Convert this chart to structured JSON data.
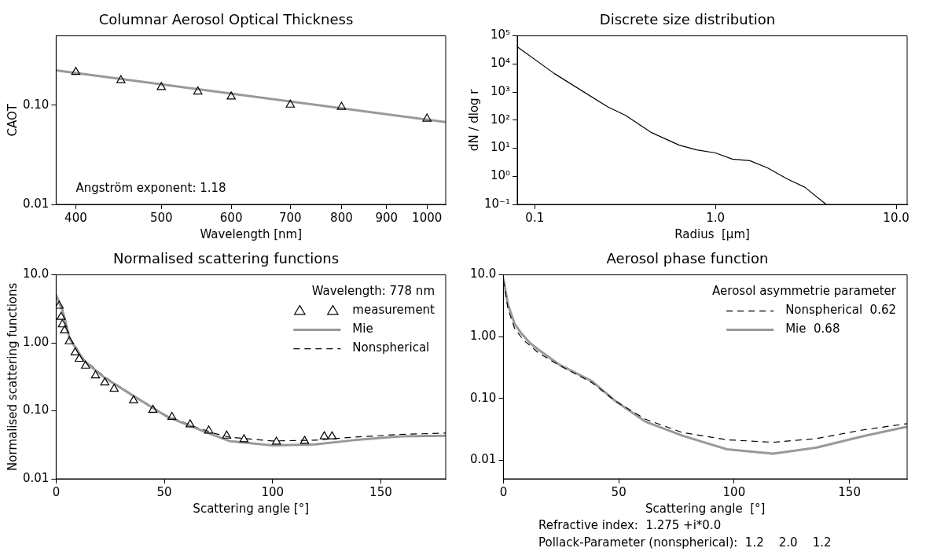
{
  "chart_data": [
    {
      "type": "line",
      "title": "Columnar Aerosol Optical Thickness",
      "xlabel": "Wavelength [nm]",
      "ylabel": "CAOT",
      "log": "xy",
      "xlim": [
        380,
        1050
      ],
      "xticks": [
        400,
        500,
        600,
        700,
        800,
        900,
        1000
      ],
      "ylim": [
        0.01,
        0.5
      ],
      "yticks": [
        {
          "value": 0.01,
          "label": "0.01"
        },
        {
          "value": 0.1,
          "label": "0.10"
        }
      ],
      "grid": false,
      "legend": false,
      "annotations": [
        "Angström exponent: 1.18"
      ],
      "series": [
        {
          "type": "scatter",
          "marker": "triangle",
          "color": "#000000",
          "x": [
            400,
            450,
            500,
            550,
            600,
            700,
            800,
            1000
          ],
          "values": [
            0.216,
            0.178,
            0.152,
            0.137,
            0.122,
            0.101,
            0.096,
            0.073
          ]
        },
        {
          "type": "line",
          "marker": "none",
          "line_style": "solid",
          "color": "#999999",
          "x": [
            380,
            1050
          ],
          "values": [
            0.224,
            0.0676
          ]
        }
      ]
    },
    {
      "type": "line",
      "title": "Discrete size distribution",
      "xlabel": "Radius  [μm]",
      "ylabel": "dN / dlog r",
      "log": "xy",
      "xlim": [
        0.08,
        11.5
      ],
      "xticks": [
        0.1,
        {
          "value": 1,
          "label": "1.0"
        },
        {
          "value": 10,
          "label": "10.0"
        }
      ],
      "ylim": [
        0.1,
        100000
      ],
      "yticks": [
        {
          "value": 0.1,
          "label": "10⁻¹"
        },
        {
          "value": 1,
          "label": "10⁰"
        },
        {
          "value": 10,
          "label": "10¹"
        },
        {
          "value": 100,
          "label": "10²"
        },
        {
          "value": 1000,
          "label": "10³"
        },
        {
          "value": 10000,
          "label": "10⁴"
        },
        {
          "value": 100000,
          "label": "10⁵"
        }
      ],
      "grid": false,
      "legend": false,
      "series": [
        {
          "type": "line",
          "marker": "none",
          "line_style": "solid",
          "color": "#000000",
          "x": [
            0.08,
            0.128,
            0.254,
            0.318,
            0.443,
            0.63,
            0.787,
            1.0,
            1.24,
            1.55,
            1.94,
            2.49,
            3.12,
            4.1
          ],
          "values": [
            41000,
            4600,
            295,
            148,
            36,
            12.9,
            8.7,
            6.8,
            4.1,
            3.6,
            2.0,
            0.81,
            0.41,
            0.1
          ]
        }
      ]
    },
    {
      "type": "line",
      "title": "Normalised scattering functions",
      "xlabel": "Scattering angle [°]",
      "ylabel": "Normalised scattering functions",
      "log": "y",
      "xlim": [
        0,
        180
      ],
      "xticks": [
        0,
        50,
        100,
        150
      ],
      "ylim": [
        0.01,
        10
      ],
      "yticks": [
        {
          "value": 0.01,
          "label": "0.01"
        },
        {
          "value": 0.1,
          "label": "0.10"
        },
        {
          "value": 1,
          "label": "1.00"
        },
        {
          "value": 10,
          "label": "10.0"
        }
      ],
      "grid": false,
      "legend": "top right",
      "legend_title": "Wavelength: 778 nm",
      "series": [
        {
          "name": "measurement",
          "type": "scatter",
          "marker": "triangle",
          "color": "#000000",
          "x": [
            1.4,
            2.3,
            2.9,
            3.9,
            6.1,
            8.8,
            10.7,
            13.6,
            18.2,
            22.5,
            26.8,
            35.8,
            44.7,
            53.5,
            61.9,
            70.5,
            78.8,
            86.8,
            101.8,
            114.8,
            123.9,
            127.5
          ],
          "values": [
            3.5,
            2.4,
            1.86,
            1.52,
            1.05,
            0.72,
            0.58,
            0.46,
            0.33,
            0.26,
            0.21,
            0.142,
            0.103,
            0.081,
            0.063,
            0.051,
            0.043,
            0.038,
            0.035,
            0.036,
            0.042,
            0.042
          ]
        },
        {
          "name": "Mie",
          "type": "line",
          "marker": "none",
          "line_style": "solid",
          "color": "#999999",
          "x": [
            0,
            3.2,
            6.3,
            12.8,
            22.2,
            36.6,
            51,
            65.5,
            80,
            100,
            119.6,
            137.6,
            159,
            180
          ],
          "values": [
            5.1,
            2.8,
            1.15,
            0.55,
            0.31,
            0.159,
            0.083,
            0.054,
            0.036,
            0.031,
            0.032,
            0.037,
            0.042,
            0.043
          ]
        },
        {
          "name": "Nonspherical",
          "type": "line",
          "marker": "none",
          "line_style": "dashed",
          "color": "#000000",
          "x": [
            0,
            3.2,
            6.3,
            12.8,
            22.2,
            36.6,
            51,
            65.5,
            72.7,
            80,
            100,
            119.6,
            137.6,
            159,
            180
          ],
          "values": [
            4.9,
            3.0,
            1.2,
            0.57,
            0.32,
            0.162,
            0.085,
            0.056,
            0.047,
            0.041,
            0.036,
            0.037,
            0.041,
            0.045,
            0.047
          ]
        }
      ]
    },
    {
      "type": "line",
      "title": "Aerosol phase function",
      "xlabel": "Scattering angle  [°]",
      "log": "y",
      "xlim": [
        0,
        175
      ],
      "xticks": [
        0,
        50,
        100,
        150
      ],
      "ylim": [
        0.005,
        10
      ],
      "yticks": [
        {
          "value": 0.01,
          "label": "0.01"
        },
        {
          "value": 0.1,
          "label": "0.10"
        },
        {
          "value": 1,
          "label": "1.00"
        },
        {
          "value": 10,
          "label": "10.0"
        }
      ],
      "grid": false,
      "legend": "top right",
      "legend_title": "Aerosol asymmetrie parameter",
      "annotations": [
        "Refractive index:  1.275 +i*0.0",
        "Pollack-Parameter (nonspherical):  1.2    2.0    1.2"
      ],
      "series": [
        {
          "name": "Nonspherical  0.62",
          "type": "line",
          "marker": "none",
          "line_style": "dashed",
          "color": "#000000",
          "x": [
            0,
            2,
            4.9,
            8.6,
            15.1,
            23.8,
            38.4,
            48.5,
            61.6,
            77.6,
            97,
            116.9,
            135.8,
            156,
            175
          ],
          "values": [
            8.2,
            2.8,
            1.35,
            0.89,
            0.55,
            0.35,
            0.18,
            0.091,
            0.046,
            0.028,
            0.0214,
            0.0195,
            0.0224,
            0.031,
            0.039
          ]
        },
        {
          "name": "Mie  0.68",
          "type": "line",
          "marker": "none",
          "line_style": "solid",
          "color": "#999999",
          "x": [
            0,
            2,
            4.9,
            7.8,
            11.5,
            15.1,
            23.8,
            38.4,
            48.5,
            61.6,
            77.6,
            87.8,
            97,
            116.9,
            135.8,
            156,
            175
          ],
          "values": [
            8.7,
            3.3,
            1.6,
            1.13,
            0.79,
            0.62,
            0.36,
            0.19,
            0.091,
            0.042,
            0.025,
            0.019,
            0.015,
            0.0128,
            0.016,
            0.0245,
            0.035
          ]
        }
      ]
    }
  ]
}
